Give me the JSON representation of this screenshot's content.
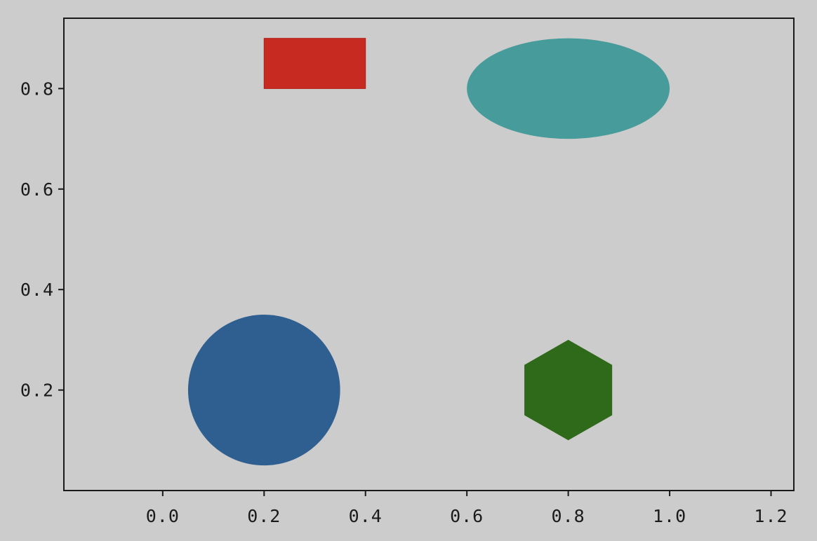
{
  "chart_data": {
    "type": "patches",
    "xlim": [
      -0.195,
      1.245
    ],
    "ylim": [
      0.0,
      0.94
    ],
    "grid": false,
    "x_ticks": [
      0.0,
      0.2,
      0.4,
      0.6,
      0.8,
      1.0,
      1.2
    ],
    "x_tick_labels": [
      "0.0",
      "0.2",
      "0.4",
      "0.6",
      "0.8",
      "1.0",
      "1.2"
    ],
    "y_ticks": [
      0.2,
      0.4,
      0.6,
      0.8
    ],
    "y_tick_labels": [
      "0.2",
      "0.4",
      "0.6",
      "0.8"
    ],
    "shapes": [
      {
        "kind": "rectangle",
        "x": 0.2,
        "y": 0.8,
        "width": 0.2,
        "height": 0.1,
        "color": "#c62a20"
      },
      {
        "kind": "ellipse",
        "cx": 0.8,
        "cy": 0.8,
        "width": 0.4,
        "height": 0.2,
        "color": "#489b9b"
      },
      {
        "kind": "circle",
        "cx": 0.2,
        "cy": 0.2,
        "radius": 0.15,
        "color": "#2f5f91"
      },
      {
        "kind": "hexagon",
        "cx": 0.8,
        "cy": 0.2,
        "radius": 0.1,
        "color": "#2e6a19"
      }
    ]
  }
}
